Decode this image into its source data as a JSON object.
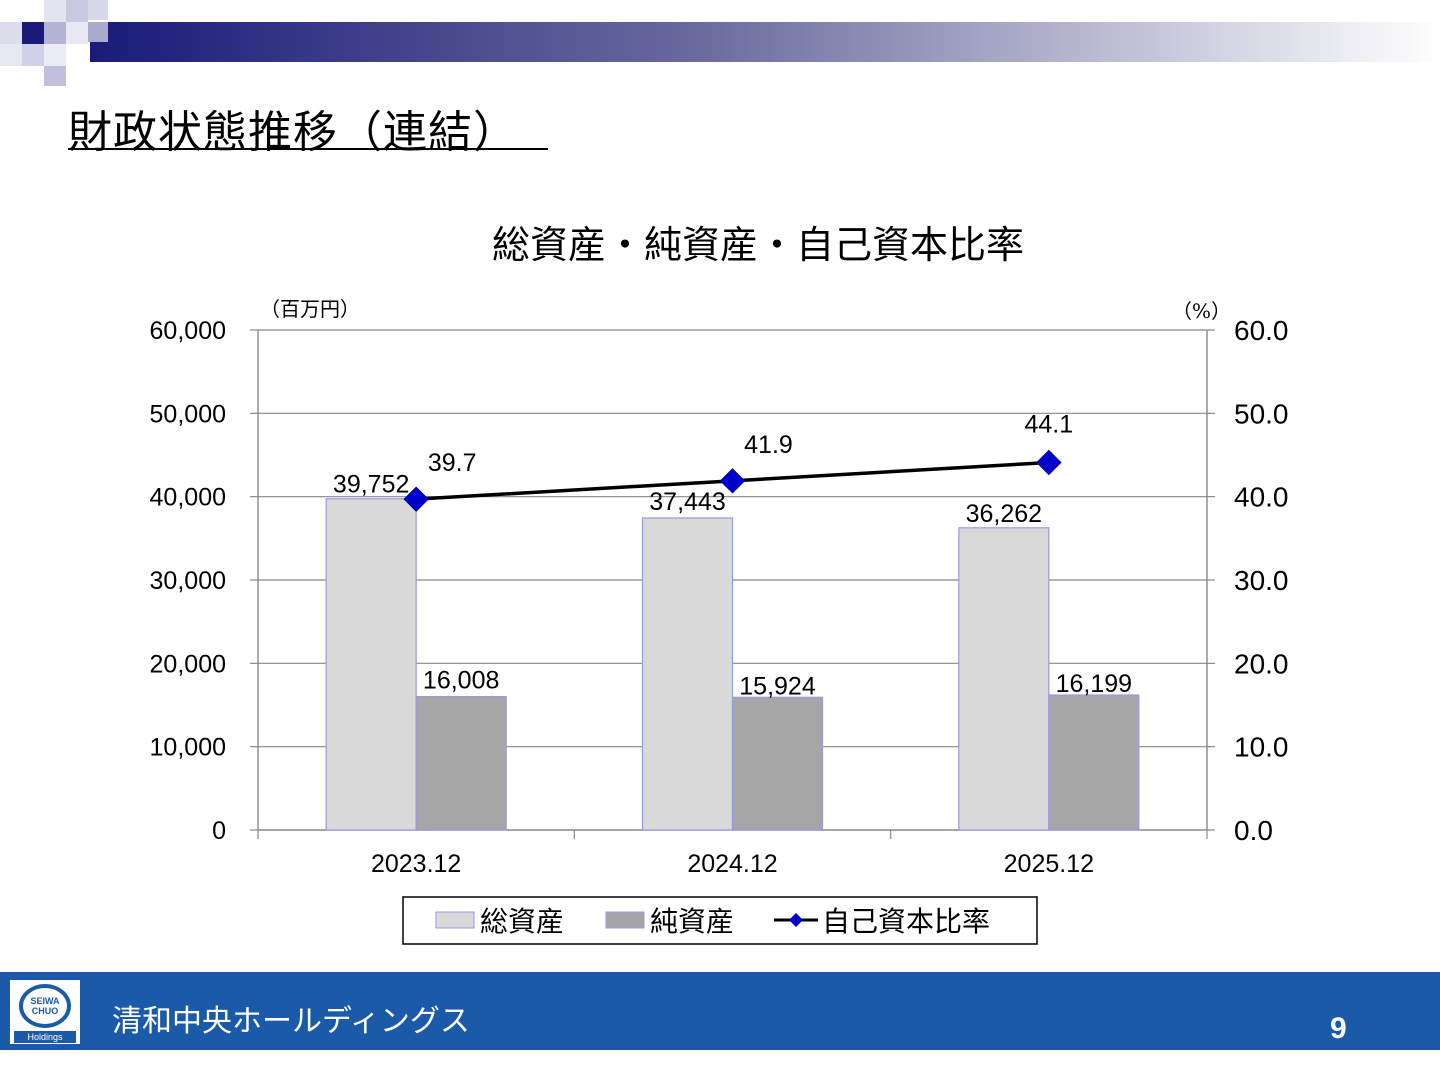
{
  "slide": {
    "title": "財政状態推移（連結）"
  },
  "footer": {
    "company": "清和中央ホールディングス",
    "logo_text_top": "SEIWA",
    "logo_text_mid": "CHUO",
    "logo_text_bottom": "Holdings",
    "page_number": "9"
  },
  "colors": {
    "accent_navy": "#1a1a7a",
    "footer_blue": "#1b5aa8",
    "bar_total": "#d9d9d9",
    "bar_net": "#a6a6a6",
    "line": "#000000",
    "marker": "#0000cc"
  },
  "chart_data": {
    "type": "bar",
    "title": "総資産・純資産・自己資本比率",
    "left_unit": "（百万円）",
    "right_unit": "（%）",
    "categories": [
      "2023.12",
      "2024.12",
      "2025.12"
    ],
    "series": [
      {
        "name": "総資産",
        "type": "bar",
        "axis": "left",
        "values": [
          39752,
          37443,
          36262
        ],
        "labels": [
          "39,752",
          "37,443",
          "36,262"
        ]
      },
      {
        "name": "純資産",
        "type": "bar",
        "axis": "left",
        "values": [
          16008,
          15924,
          16199
        ],
        "labels": [
          "16,008",
          "15,924",
          "16,199"
        ]
      },
      {
        "name": "自己資本比率",
        "type": "line",
        "axis": "right",
        "values": [
          39.7,
          41.9,
          44.1
        ],
        "labels": [
          "39.7",
          "41.9",
          "44.1"
        ]
      }
    ],
    "ylim_left": [
      0,
      60000
    ],
    "ylim_right": [
      0,
      60
    ],
    "left_ticks": [
      "0",
      "10,000",
      "20,000",
      "30,000",
      "40,000",
      "50,000",
      "60,000"
    ],
    "right_ticks": [
      "0.0",
      "10.0",
      "20.0",
      "30.0",
      "40.0",
      "50.0",
      "60.0"
    ],
    "grid": true,
    "legend": "bottom"
  }
}
